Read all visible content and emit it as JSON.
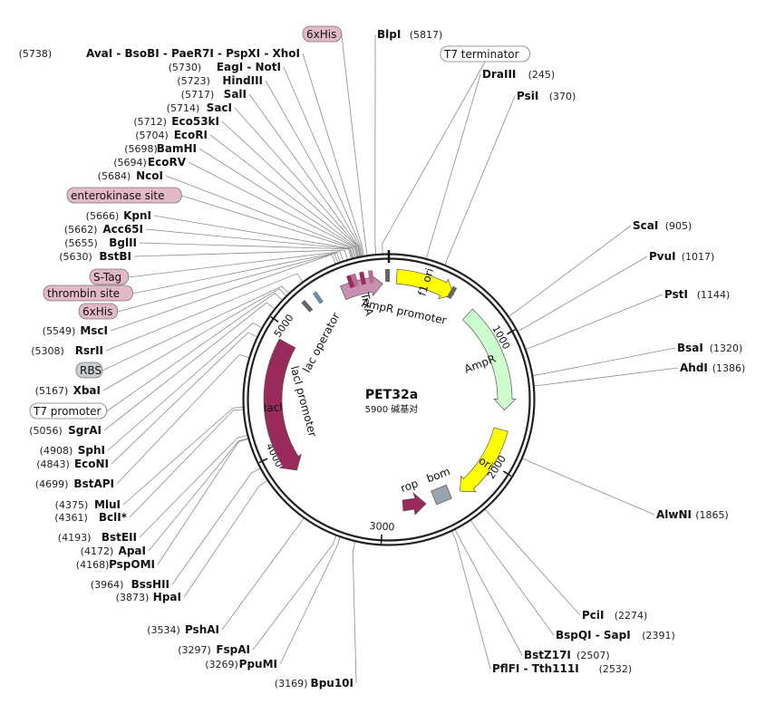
{
  "plasmid": {
    "name": "PET32a",
    "size_label": "5900 碱基对",
    "length": 5900
  },
  "colors": {
    "backbone": "#222222",
    "trxA": "#c890b0",
    "lacI": "#9b2a5c",
    "f1_ori": "#ffff00",
    "ampR": "#ccffcc",
    "ori": "#ffff00",
    "rop": "#9b2a5c",
    "bom": "#9aa4ad",
    "tag_pink": "#e3b8c8",
    "tag_grey": "#c8cdd2",
    "tag_white": "#ffffff"
  },
  "ticks": [
    {
      "pos": 1000,
      "label": "1000"
    },
    {
      "pos": 2000,
      "label": "2000"
    },
    {
      "pos": 3000,
      "label": "3000"
    },
    {
      "pos": 4000,
      "label": "4000"
    },
    {
      "pos": 5000,
      "label": "5000"
    }
  ],
  "features": [
    {
      "name": "TrxA",
      "start": 5520,
      "end": 5850,
      "dir": "cw",
      "color": "#c890b0",
      "label": "TrxA",
      "kind": "arrow"
    },
    {
      "name": "lacI",
      "start": 3810,
      "end": 4900,
      "dir": "ccw",
      "color": "#9b2a5c",
      "label": "lacI",
      "kind": "arrow",
      "label_inside": true
    },
    {
      "name": "f1 ori",
      "start": 60,
      "end": 520,
      "dir": "cw",
      "color": "#ffff00",
      "label": "f1 ori",
      "kind": "arrow",
      "label_inside": true
    },
    {
      "name": "AmpR",
      "start": 700,
      "end": 1560,
      "dir": "cw",
      "color": "#ccffcc",
      "label": "AmpR",
      "kind": "arrow"
    },
    {
      "name": "ori",
      "start": 1720,
      "end": 2330,
      "dir": "cw",
      "color": "#ffff00",
      "label": "ori",
      "kind": "arrow",
      "label_inside": true
    }
  ],
  "inner_features": [
    {
      "name": "rop",
      "label": "rop",
      "color": "#9b2a5c",
      "kind": "arrow"
    },
    {
      "name": "bom",
      "label": "bom",
      "color": "#9aa4ad",
      "kind": "box"
    }
  ],
  "feature_text_labels": [
    {
      "name": "AmpR promoter",
      "label": "AmpR promoter"
    },
    {
      "name": "lacI promoter",
      "label": "lacI promoter"
    },
    {
      "name": "lac operator",
      "label": "lac operator"
    }
  ],
  "sites": [
    {
      "name": "BlpI",
      "pos_label": "(5817)",
      "side": "right",
      "pos": 5817
    },
    {
      "name": "DraIII",
      "pos_label": "(245)",
      "side": "right",
      "pos": 245
    },
    {
      "name": "PsiI",
      "pos_label": "(370)",
      "side": "right",
      "pos": 370
    },
    {
      "name": "ScaI",
      "pos_label": "(905)",
      "side": "right",
      "pos": 905
    },
    {
      "name": "PvuI",
      "pos_label": "(1017)",
      "side": "right",
      "pos": 1017
    },
    {
      "name": "PstI",
      "pos_label": "(1144)",
      "side": "right",
      "pos": 1144
    },
    {
      "name": "BsaI",
      "pos_label": "(1320)",
      "side": "right",
      "pos": 1320
    },
    {
      "name": "AhdI",
      "pos_label": "(1386)",
      "side": "right",
      "pos": 1386
    },
    {
      "name": "AlwNI",
      "pos_label": "(1865)",
      "side": "right",
      "pos": 1865
    },
    {
      "name": "PciI",
      "pos_label": "(2274)",
      "side": "right",
      "pos": 2274
    },
    {
      "name": "BspQI - SapI",
      "pos_label": "(2391)",
      "side": "right",
      "pos": 2391
    },
    {
      "name": "BstZ17I",
      "pos_label": "(2507)",
      "side": "right",
      "pos": 2507
    },
    {
      "name": "PflFI - Tth111I",
      "pos_label": "(2532)",
      "side": "right",
      "pos": 2532
    },
    {
      "name": "Bpu10I",
      "pos_label": "(3169)",
      "side": "left",
      "pos": 3169
    },
    {
      "name": "PpuMI",
      "pos_label": "(3269)",
      "side": "left",
      "pos": 3269
    },
    {
      "name": "FspAI",
      "pos_label": "(3297)",
      "side": "left",
      "pos": 3297
    },
    {
      "name": "PshAI",
      "pos_label": "(3534)",
      "side": "left",
      "pos": 3534
    },
    {
      "name": "HpaI",
      "pos_label": "(3873)",
      "side": "left",
      "pos": 3873
    },
    {
      "name": "BssHII",
      "pos_label": "(3964)",
      "side": "left",
      "pos": 3964
    },
    {
      "name": "PspOMI",
      "pos_label": "(4168)",
      "side": "left",
      "pos": 4168
    },
    {
      "name": "ApaI",
      "pos_label": "(4172)",
      "side": "left",
      "pos": 4172
    },
    {
      "name": "BstEII",
      "pos_label": "(4193)",
      "side": "left",
      "pos": 4193
    },
    {
      "name": "BclI*",
      "pos_label": "(4361)",
      "side": "left",
      "pos": 4361
    },
    {
      "name": "MluI",
      "pos_label": "(4375)",
      "side": "left",
      "pos": 4375
    },
    {
      "name": "BstAPI",
      "pos_label": "(4699)",
      "side": "left",
      "pos": 4699
    },
    {
      "name": "EcoNI",
      "pos_label": "(4843)",
      "side": "left",
      "pos": 4843
    },
    {
      "name": "SphI",
      "pos_label": "(4908)",
      "side": "left",
      "pos": 4908
    },
    {
      "name": "SgrAI",
      "pos_label": "(5056)",
      "side": "left",
      "pos": 5056
    },
    {
      "name": "XbaI",
      "pos_label": "(5167)",
      "side": "left",
      "pos": 5167
    },
    {
      "name": "RsrII",
      "pos_label": "(5308)",
      "side": "left",
      "pos": 5308
    },
    {
      "name": "MscI",
      "pos_label": "(5549)",
      "side": "left",
      "pos": 5549
    },
    {
      "name": "BstBI",
      "pos_label": "(5630)",
      "side": "left",
      "pos": 5630
    },
    {
      "name": "BglII",
      "pos_label": "(5655)",
      "side": "left",
      "pos": 5655
    },
    {
      "name": "Acc65I",
      "pos_label": "(5662)",
      "side": "left",
      "pos": 5662
    },
    {
      "name": "KpnI",
      "pos_label": "(5666)",
      "side": "left",
      "pos": 5666
    },
    {
      "name": "NcoI",
      "pos_label": "(5684)",
      "side": "left",
      "pos": 5684
    },
    {
      "name": "EcoRV",
      "pos_label": "(5694)",
      "side": "left",
      "pos": 5694
    },
    {
      "name": "BamHI",
      "pos_label": "(5698)",
      "side": "left",
      "pos": 5698
    },
    {
      "name": "EcoRI",
      "pos_label": "(5704)",
      "side": "left",
      "pos": 5704
    },
    {
      "name": "Eco53kI",
      "pos_label": "(5712)",
      "side": "left",
      "pos": 5712
    },
    {
      "name": "SacI",
      "pos_label": "(5714)",
      "side": "left",
      "pos": 5714
    },
    {
      "name": "SalI",
      "pos_label": "(5717)",
      "side": "left",
      "pos": 5717
    },
    {
      "name": "HindIII",
      "pos_label": "(5723)",
      "side": "left",
      "pos": 5723
    },
    {
      "name": "EagI - NotI",
      "pos_label": "(5730)",
      "side": "left",
      "pos": 5730
    },
    {
      "name": "AvaI - BsoBI - PaeR7I - PspXI - XhoI",
      "pos_label": "(5738)",
      "side": "left",
      "pos": 5738
    }
  ],
  "tags": [
    {
      "name": "6xHis",
      "label": "6xHis",
      "style": "pink",
      "pos": 5760
    },
    {
      "name": "T7 terminator",
      "label": "T7 terminator",
      "style": "white",
      "pos": 5860
    },
    {
      "name": "enterokinase site",
      "label": "enterokinase site",
      "style": "pink",
      "pos": 5676
    },
    {
      "name": "S-Tag",
      "label": "S-Tag",
      "style": "pink",
      "pos": 5600
    },
    {
      "name": "thrombin site",
      "label": "thrombin site",
      "style": "pink",
      "pos": 5580
    },
    {
      "name": "6xHis",
      "label": "6xHis",
      "style": "pink",
      "pos": 5565
    },
    {
      "name": "RBS",
      "label": "RBS",
      "style": "grey",
      "pos": 5190
    },
    {
      "name": "T7 promoter",
      "label": "T7 promoter",
      "style": "white",
      "pos": 5130
    }
  ]
}
